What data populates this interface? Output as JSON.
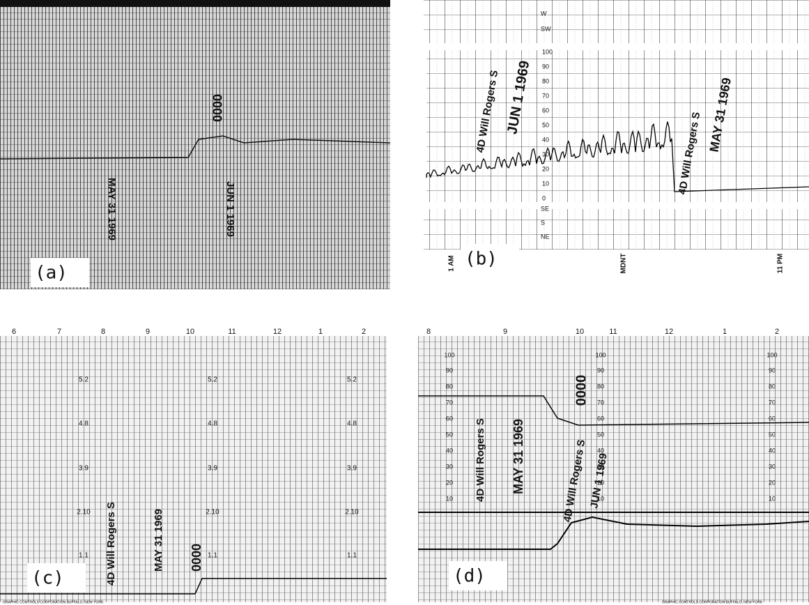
{
  "panels": [
    {
      "label": "(a)",
      "texts": [
        "0000",
        "JUN 1 1969",
        "MAY 31 1969"
      ]
    },
    {
      "label": "(b)",
      "scale": [
        "100",
        "90",
        "80",
        "70",
        "60",
        "50",
        "40",
        "30",
        "20",
        "10",
        "0"
      ],
      "directions": [
        "W",
        "SW",
        "SE",
        "S",
        "NE"
      ],
      "hours": [
        "1 AM",
        "MDNT",
        "11 PM"
      ],
      "texts": [
        "4D Will Rogers S",
        "JUN 1 1969",
        "4D Will Rogers S",
        "MAY 31 1969"
      ]
    },
    {
      "label": "(c)",
      "hours": [
        "6",
        "7",
        "8",
        "9",
        "10",
        "11",
        "12",
        "1",
        "2"
      ],
      "scale": [
        "5.2",
        "4.8",
        "3.9",
        "2.10",
        "1.1"
      ],
      "texts": [
        "4D Will Rogers S",
        "MAY 31 1969",
        "0000"
      ],
      "footer": "GRAPHIC CONTROLS CORPORATION BUFFALO, NEW YORK"
    },
    {
      "label": "(d)",
      "hours": [
        "8",
        "9",
        "10",
        "11",
        "12",
        "1",
        "2"
      ],
      "scale": [
        "100",
        "90",
        "80",
        "70",
        "60",
        "50",
        "40",
        "30",
        "20",
        "10"
      ],
      "texts": [
        "4D Will Rogers S",
        "MAY 31 1969",
        "4D Will Rogers S",
        "0000",
        "JUN 1 1969"
      ],
      "footer": "GRAPHIC CONTROLS CORPORATION BUFFALO, NEW YORK"
    }
  ]
}
